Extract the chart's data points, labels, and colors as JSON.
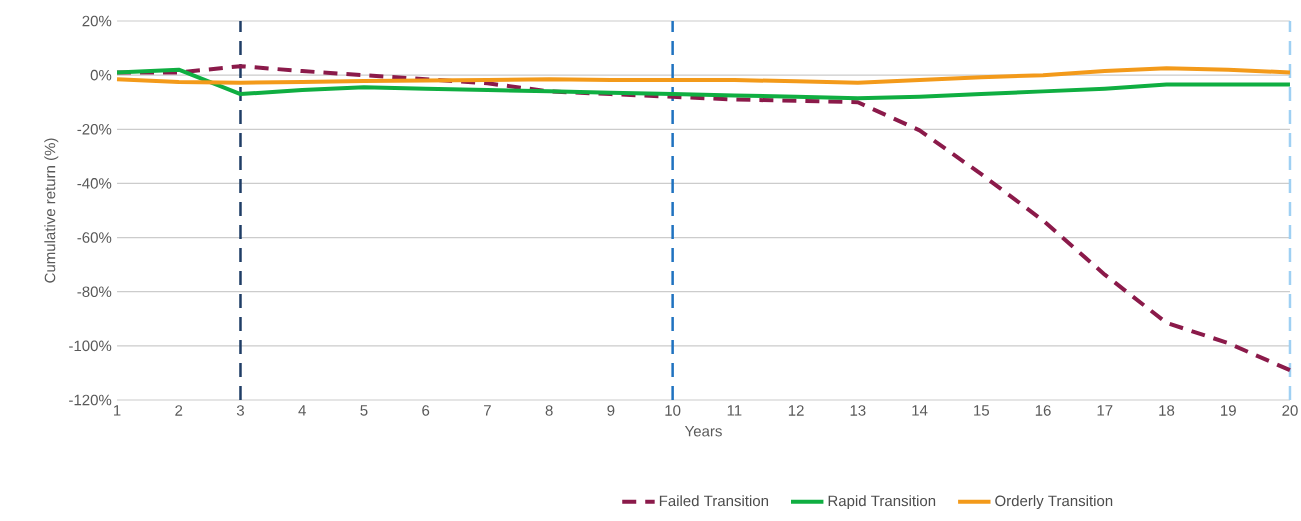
{
  "chart_data": {
    "type": "line",
    "xlabel": "Years",
    "ylabel": "Cumulative return (%)",
    "x": [
      1,
      2,
      3,
      4,
      5,
      6,
      7,
      8,
      9,
      10,
      11,
      12,
      13,
      14,
      15,
      16,
      17,
      18,
      19,
      20
    ],
    "xlim": [
      1,
      20
    ],
    "xticks": [
      1,
      2,
      3,
      4,
      5,
      6,
      7,
      8,
      9,
      10,
      11,
      12,
      13,
      14,
      15,
      16,
      17,
      18,
      19,
      20
    ],
    "ylim": [
      -120,
      20
    ],
    "yticks": [
      {
        "value": 20,
        "label": "20%"
      },
      {
        "value": 0,
        "label": "0%"
      },
      {
        "value": -20,
        "label": "-20%"
      },
      {
        "value": -40,
        "label": "-40%"
      },
      {
        "value": -60,
        "label": "-60%"
      },
      {
        "value": -80,
        "label": "-80%"
      },
      {
        "value": -100,
        "label": "-100%"
      },
      {
        "value": -120,
        "label": "-120%"
      }
    ],
    "grid": "y",
    "legend": "bottom",
    "marker": "none",
    "series": [
      {
        "name": "Failed Transition",
        "color": "#8b1a4a",
        "line_style": "dashed",
        "values": [
          1,
          1,
          3.3,
          1.5,
          0,
          -1.5,
          -3,
          -6,
          -7,
          -8,
          -9,
          -9.5,
          -10,
          -20.4,
          -36.6,
          -53.7,
          -73.7,
          -91.5,
          -99,
          -109
        ]
      },
      {
        "name": "Rapid Transition",
        "color": "#0fae41",
        "line_style": "solid",
        "values": [
          1,
          2,
          -7,
          -5.5,
          -4.5,
          -5,
          -5.5,
          -6,
          -6.5,
          -7,
          -7.5,
          -8,
          -8.5,
          -8,
          -7,
          -6,
          -5,
          -3.5,
          -3.5,
          -3.5
        ]
      },
      {
        "name": "Orderly Transition",
        "color": "#f39a1a",
        "line_style": "solid",
        "values": [
          -1.5,
          -2.5,
          -2.8,
          -2.5,
          -2.2,
          -2,
          -1.8,
          -1.5,
          -1.8,
          -1.8,
          -1.8,
          -2.3,
          -2.8,
          -1.8,
          -0.8,
          0,
          1.5,
          2.5,
          2,
          1
        ]
      }
    ],
    "ref_lines": [
      {
        "axis": "x",
        "value": 3,
        "color": "#1f3d66",
        "line_style": "dashed"
      },
      {
        "axis": "x",
        "value": 10,
        "color": "#1f72c0",
        "line_style": "dashed"
      },
      {
        "axis": "x",
        "value": 20,
        "color": "#9fd0f3",
        "line_style": "dashed"
      }
    ]
  }
}
